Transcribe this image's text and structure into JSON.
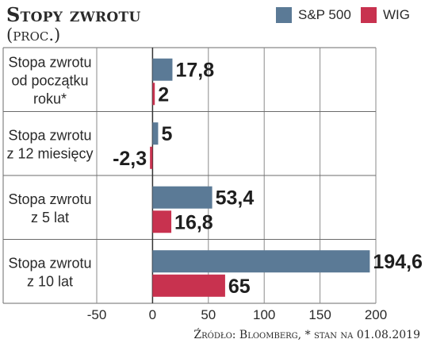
{
  "header": {
    "title": "Stopy zwrotu",
    "subtitle": "(proc.)"
  },
  "legend": [
    {
      "name": "S&P 500",
      "color": "#5b7a96"
    },
    {
      "name": "WIG",
      "color": "#c8324f"
    }
  ],
  "source": "Źródło: Bloomberg, * stan na 01.08.2019",
  "chart_data": {
    "type": "bar",
    "orientation": "horizontal",
    "categories": [
      [
        "Stopa zwrotu",
        "od początku",
        "roku*"
      ],
      [
        "Stopa zwrotu",
        "z 12 miesięcy"
      ],
      [
        "Stopa zwrotu",
        "z 5 lat"
      ],
      [
        "Stopa zwrotu",
        "z 10 lat"
      ]
    ],
    "series": [
      {
        "name": "S&P 500",
        "color": "#5b7a96",
        "values": [
          17.8,
          5,
          53.4,
          194.6
        ],
        "labels": [
          "17,8",
          "5",
          "53,4",
          "194,6"
        ]
      },
      {
        "name": "WIG",
        "color": "#c8324f",
        "values": [
          2,
          -2.3,
          16.8,
          65
        ],
        "labels": [
          "2",
          "-2,3",
          "16,8",
          "65"
        ]
      }
    ],
    "xlim": [
      -50,
      200
    ],
    "xticks": [
      -50,
      0,
      50,
      100,
      150,
      200
    ],
    "xtick_labels": [
      "-50",
      "0",
      "50",
      "100",
      "150",
      "200"
    ],
    "grid": true,
    "legend_position": "top-right"
  }
}
